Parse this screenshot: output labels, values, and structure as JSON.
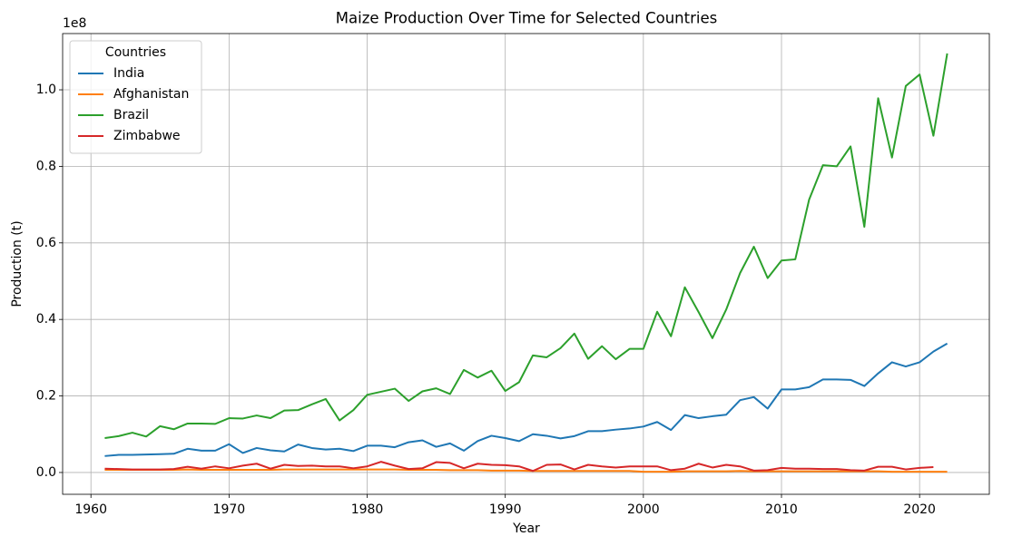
{
  "chart_data": {
    "type": "line",
    "title": "Maize Production Over Time for Selected Countries",
    "x_label": "Year",
    "y_label": "Production (t)",
    "y_offset_label": "1e8",
    "legend_title": "Countries",
    "legend": "upper left",
    "grid": true,
    "x": [
      1961,
      1962,
      1963,
      1964,
      1965,
      1966,
      1967,
      1968,
      1969,
      1970,
      1971,
      1972,
      1973,
      1974,
      1975,
      1976,
      1977,
      1978,
      1979,
      1980,
      1981,
      1982,
      1983,
      1984,
      1985,
      1986,
      1987,
      1988,
      1989,
      1990,
      1991,
      1992,
      1993,
      1994,
      1995,
      1996,
      1997,
      1998,
      1999,
      2000,
      2001,
      2002,
      2003,
      2004,
      2005,
      2006,
      2007,
      2008,
      2009,
      2010,
      2011,
      2012,
      2013,
      2014,
      2015,
      2016,
      2017,
      2018,
      2019,
      2020,
      2021,
      2022
    ],
    "series": [
      {
        "name": "India",
        "color": "#1f77b4",
        "values": [
          0.043,
          0.046,
          0.046,
          0.047,
          0.048,
          0.049,
          0.062,
          0.057,
          0.057,
          0.074,
          0.051,
          0.064,
          0.058,
          0.055,
          0.073,
          0.064,
          0.06,
          0.062,
          0.056,
          0.07,
          0.07,
          0.066,
          0.079,
          0.084,
          0.067,
          0.076,
          0.057,
          0.082,
          0.096,
          0.09,
          0.082,
          0.1,
          0.096,
          0.089,
          0.095,
          0.108,
          0.108,
          0.112,
          0.115,
          0.12,
          0.132,
          0.111,
          0.15,
          0.142,
          0.147,
          0.151,
          0.189,
          0.197,
          0.167,
          0.217,
          0.217,
          0.223,
          0.243,
          0.243,
          0.242,
          0.226,
          0.259,
          0.288,
          0.277,
          0.288,
          0.316,
          0.337
        ]
      },
      {
        "name": "Afghanistan",
        "color": "#ff7f0e",
        "values": [
          0.007,
          0.007,
          0.007,
          0.007,
          0.007,
          0.007,
          0.008,
          0.007,
          0.007,
          0.007,
          0.007,
          0.007,
          0.007,
          0.008,
          0.008,
          0.008,
          0.008,
          0.008,
          0.008,
          0.008,
          0.008,
          0.008,
          0.007,
          0.007,
          0.007,
          0.006,
          0.006,
          0.006,
          0.005,
          0.005,
          0.005,
          0.004,
          0.004,
          0.004,
          0.004,
          0.004,
          0.004,
          0.004,
          0.004,
          0.002,
          0.002,
          0.002,
          0.003,
          0.003,
          0.003,
          0.003,
          0.004,
          0.003,
          0.003,
          0.003,
          0.003,
          0.003,
          0.003,
          0.003,
          0.003,
          0.003,
          0.003,
          0.002,
          0.002,
          0.002,
          0.002,
          0.002
        ]
      },
      {
        "name": "Brazil",
        "color": "#2ca02c",
        "values": [
          0.09,
          0.095,
          0.104,
          0.094,
          0.121,
          0.113,
          0.128,
          0.128,
          0.127,
          0.142,
          0.141,
          0.149,
          0.142,
          0.162,
          0.163,
          0.178,
          0.192,
          0.136,
          0.163,
          0.203,
          0.211,
          0.219,
          0.187,
          0.212,
          0.22,
          0.205,
          0.268,
          0.248,
          0.266,
          0.213,
          0.236,
          0.306,
          0.301,
          0.325,
          0.363,
          0.297,
          0.33,
          0.296,
          0.323,
          0.323,
          0.42,
          0.356,
          0.484,
          0.419,
          0.351,
          0.426,
          0.521,
          0.59,
          0.508,
          0.554,
          0.557,
          0.713,
          0.803,
          0.8,
          0.852,
          0.642,
          0.978,
          0.823,
          1.01,
          1.04,
          0.88,
          1.095
        ]
      },
      {
        "name": "Zimbabwe",
        "color": "#d62728",
        "values": [
          0.01,
          0.009,
          0.008,
          0.008,
          0.008,
          0.009,
          0.015,
          0.01,
          0.016,
          0.011,
          0.018,
          0.023,
          0.01,
          0.02,
          0.017,
          0.018,
          0.016,
          0.016,
          0.011,
          0.016,
          0.028,
          0.018,
          0.009,
          0.011,
          0.027,
          0.025,
          0.011,
          0.023,
          0.02,
          0.019,
          0.016,
          0.004,
          0.02,
          0.021,
          0.008,
          0.02,
          0.016,
          0.013,
          0.016,
          0.016,
          0.016,
          0.006,
          0.01,
          0.023,
          0.013,
          0.02,
          0.016,
          0.005,
          0.006,
          0.012,
          0.01,
          0.01,
          0.009,
          0.009,
          0.006,
          0.005,
          0.015,
          0.015,
          0.008,
          0.012,
          0.014,
          null
        ]
      }
    ],
    "xlim": [
      1957.95,
      2025.05
    ],
    "xticks": [
      1960,
      1970,
      1980,
      1990,
      2000,
      2010,
      2020
    ],
    "ylim": [
      -0.057,
      1.147
    ],
    "yticks": [
      {
        "value": 0,
        "label": "0.0"
      },
      0.2,
      0.4,
      0.6,
      0.8,
      {
        "value": 1,
        "label": "1.0"
      }
    ]
  }
}
